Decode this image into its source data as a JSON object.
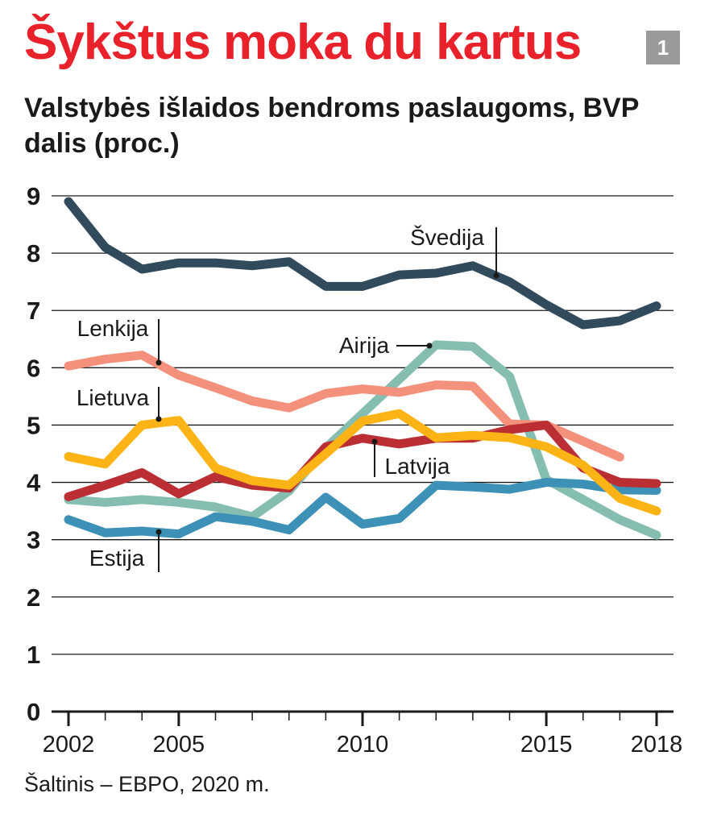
{
  "header": {
    "title": "Šykštus moka du kartus",
    "subtitle": "Valstybės išlaidos bendroms paslaugoms, BVP dalis (proc.)",
    "badge": "1"
  },
  "footer": {
    "source": "Šaltinis – EBPO, 2020 m."
  },
  "colors": {
    "title": "#e8212b",
    "badge_bg": "#9a9a9a",
    "grid": "#1a1a1a"
  },
  "chart_data": {
    "type": "line",
    "title": "Valstybės išlaidos bendroms paslaugoms, BVP dalis (proc.)",
    "xlabel": "",
    "ylabel": "",
    "xlim": [
      2002,
      2018
    ],
    "ylim": [
      0,
      9
    ],
    "y_ticks": [
      0,
      1,
      2,
      3,
      4,
      5,
      6,
      7,
      8,
      9
    ],
    "y_tick_labels": [
      "0",
      "1",
      "2",
      "3",
      "4",
      "5",
      "6",
      "7",
      "8",
      "9"
    ],
    "x_tick_labels": [
      {
        "value": 2002,
        "label": "2002"
      },
      {
        "value": 2005,
        "label": "2005"
      },
      {
        "value": 2010,
        "label": "2010"
      },
      {
        "value": 2015,
        "label": "2015"
      },
      {
        "value": 2018,
        "label": "2018"
      }
    ],
    "grid": "horizontal",
    "legend": "inline labels",
    "series": [
      {
        "name": "Airija",
        "color": "#86bdb1",
        "x": [
          2002,
          2003,
          2004,
          2005,
          2006,
          2007,
          2008,
          2009,
          2010,
          2011,
          2012,
          2013,
          2014,
          2015,
          2016,
          2017,
          2018
        ],
        "values": [
          3.7,
          3.65,
          3.7,
          3.65,
          3.57,
          3.4,
          3.85,
          4.6,
          5.2,
          5.8,
          6.4,
          6.37,
          5.85,
          4.05,
          3.7,
          3.35,
          3.08
        ]
      },
      {
        "name": "Estija",
        "color": "#3d91b6",
        "x": [
          2002,
          2003,
          2004,
          2005,
          2006,
          2007,
          2008,
          2009,
          2010,
          2011,
          2012,
          2013,
          2014,
          2015,
          2016,
          2017,
          2018
        ],
        "values": [
          3.35,
          3.12,
          3.15,
          3.1,
          3.4,
          3.32,
          3.17,
          3.74,
          3.27,
          3.37,
          3.95,
          3.92,
          3.88,
          4.0,
          3.97,
          3.87,
          3.86
        ]
      },
      {
        "name": "Lenkija",
        "color": "#f4917c",
        "x": [
          2002,
          2003,
          2004,
          2005,
          2006,
          2007,
          2008,
          2009,
          2010,
          2011,
          2012,
          2013,
          2014,
          2015,
          2016,
          2017
        ],
        "values": [
          6.03,
          6.15,
          6.22,
          5.87,
          5.65,
          5.42,
          5.3,
          5.55,
          5.63,
          5.57,
          5.7,
          5.68,
          5.02,
          5.0,
          4.72,
          4.44
        ]
      },
      {
        "name": "Latvija",
        "color": "#bb2f34",
        "x": [
          2002,
          2003,
          2004,
          2005,
          2006,
          2007,
          2008,
          2009,
          2010,
          2011,
          2012,
          2013,
          2014,
          2015,
          2016,
          2017,
          2018
        ],
        "values": [
          3.75,
          3.95,
          4.17,
          3.8,
          4.1,
          3.95,
          3.9,
          4.62,
          4.77,
          4.67,
          4.77,
          4.77,
          4.92,
          5.0,
          4.25,
          4.0,
          3.98
        ]
      },
      {
        "name": "Lietuva",
        "color": "#fbb316",
        "x": [
          2002,
          2003,
          2004,
          2005,
          2006,
          2007,
          2008,
          2009,
          2010,
          2011,
          2012,
          2013,
          2014,
          2015,
          2016,
          2017,
          2018
        ],
        "values": [
          4.45,
          4.32,
          5.0,
          5.08,
          4.25,
          4.03,
          3.95,
          4.5,
          5.07,
          5.2,
          4.78,
          4.82,
          4.78,
          4.62,
          4.3,
          3.72,
          3.5
        ]
      },
      {
        "name": "Švedija",
        "color": "#314a5c",
        "x": [
          2002,
          2003,
          2004,
          2005,
          2006,
          2007,
          2008,
          2009,
          2010,
          2011,
          2012,
          2013,
          2014,
          2015,
          2016,
          2017,
          2018
        ],
        "values": [
          8.9,
          8.1,
          7.72,
          7.83,
          7.83,
          7.78,
          7.85,
          7.42,
          7.42,
          7.62,
          7.65,
          7.78,
          7.5,
          7.1,
          6.75,
          6.82,
          7.08
        ]
      }
    ],
    "annotations": [
      {
        "series": "Švedija",
        "text": "Švedija"
      },
      {
        "series": "Lenkija",
        "text": "Lenkija"
      },
      {
        "series": "Lietuva",
        "text": "Lietuva"
      },
      {
        "series": "Estija",
        "text": "Estija"
      },
      {
        "series": "Airija",
        "text": "Airija"
      },
      {
        "series": "Latvija",
        "text": "Latvija"
      }
    ]
  }
}
